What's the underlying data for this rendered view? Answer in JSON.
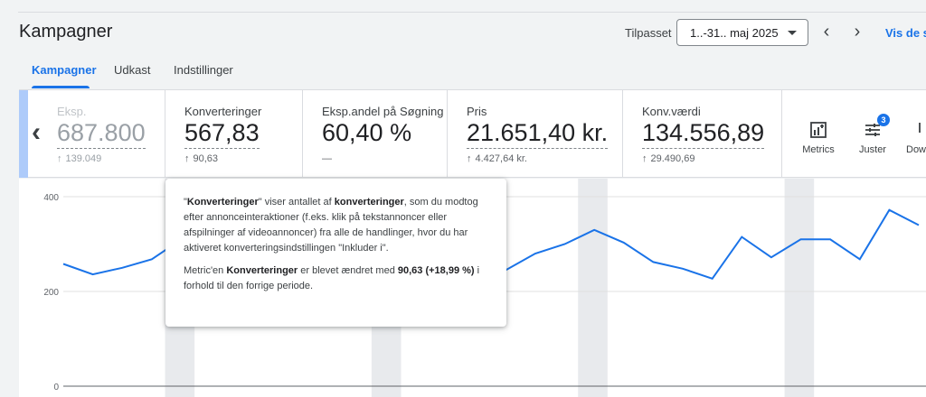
{
  "header": {
    "title": "Kampagner",
    "period_label": "Tilpasset",
    "date_range": "1..-31.. maj 2025",
    "view_link": "Vis de s"
  },
  "tabs": [
    {
      "label": "Kampagner",
      "active": true
    },
    {
      "label": "Udkast",
      "active": false
    },
    {
      "label": "Indstillinger",
      "active": false
    }
  ],
  "scorecards": [
    {
      "label": "Eksp.",
      "value": "687.800",
      "delta": "139.049"
    },
    {
      "label": "Konverteringer",
      "value": "567,83",
      "delta": "90,63"
    },
    {
      "label": "Eksp.andel på Søgning",
      "value": "60,40 %",
      "delta": "—"
    },
    {
      "label": "Pris",
      "value": "21.651,40 kr.",
      "delta": "4.427,64 kr."
    },
    {
      "label": "Konv.værdi",
      "value": "134.556,89",
      "delta": "29.490,69"
    }
  ],
  "toolbar": {
    "metrics_label": "Metrics",
    "adjust_label": "Juster",
    "adjust_badge": "3",
    "download_label": "Dow"
  },
  "tooltip": {
    "p1_a": "\"",
    "p1_term": "Konverteringer",
    "p1_b": "\" viser antallet af ",
    "p1_term2": "konverteringer",
    "p1_c": ", som du modtog efter annonceinteraktioner (f.eks. klik på tekstannoncer eller afspilninger af videoannoncer) fra alle de handlinger, hvor du har aktiveret konverteringsindstillingen \"Inkluder i\".",
    "p2_a": "Metric'en ",
    "p2_term": "Konverteringer",
    "p2_b": " er blevet ændret med ",
    "p2_value": "90,63 (+18,99 %)",
    "p2_c": " i forhold til den forrige periode."
  },
  "colors": {
    "accent": "#1a73e8",
    "line": "#1a73e8",
    "weekend_band": "#e8eaed"
  },
  "chart_data": {
    "type": "line",
    "y_ticks": [
      "400",
      "200",
      "0"
    ],
    "ylim": [
      0,
      400
    ],
    "grid": true,
    "series": [
      {
        "values": [
          258,
          236,
          250,
          268,
          310,
          320,
          300,
          285,
          270,
          262,
          290,
          300,
          275,
          265,
          250,
          245,
          280,
          300,
          330,
          303,
          262,
          248,
          227,
          315,
          272,
          310,
          310,
          268,
          372,
          340
        ]
      }
    ],
    "weekend_bands": [
      [
        3,
        4
      ],
      [
        10,
        11
      ],
      [
        17,
        18
      ],
      [
        24,
        25
      ]
    ]
  }
}
